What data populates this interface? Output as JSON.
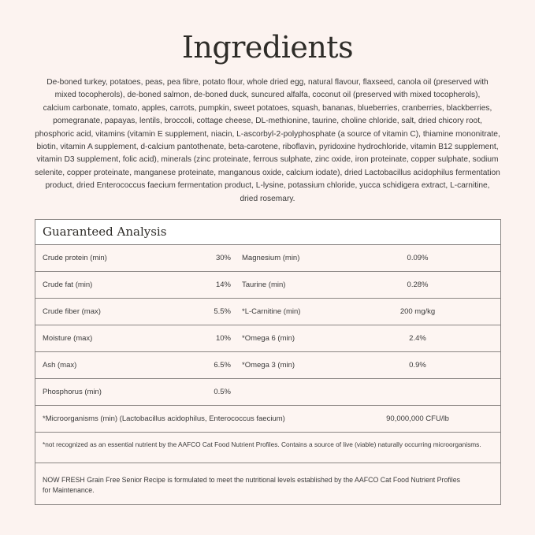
{
  "title": "Ingredients",
  "ingredients_lines": [
    "De-boned turkey, potatoes, peas, pea fibre, potato flour, whole dried egg, natural flavour, flaxseed, canola oil (preserved with",
    "mixed tocopherols), de-boned salmon, de-boned duck, suncured alfalfa, coconut oil (preserved with mixed tocopherols),",
    "calcium carbonate, tomato, apples, carrots, pumpkin, sweet potatoes, squash, bananas, blueberries, cranberries, blackberries,",
    "pomegranate, papayas, lentils, broccoli, cottage cheese, DL-methionine, taurine, choline chloride, salt, dried chicory root,",
    "phosphoric acid, vitamins (vitamin E supplement, niacin, L-ascorbyl-2-polyphosphate (a source of vitamin C), thiamine mononitrate,",
    "biotin, vitamin A supplement, d-calcium pantothenate, beta-carotene, riboflavin, pyridoxine hydrochloride, vitamin B12 supplement,",
    "vitamin D3 supplement, folic acid), minerals (zinc proteinate, ferrous sulphate, zinc oxide, iron proteinate, copper sulphate, sodium",
    "selenite, copper proteinate, manganese proteinate, manganous oxide, calcium iodate), dried Lactobacillus acidophilus fermentation",
    "product, dried Enterococcus faecium fermentation product, L-lysine, potassium chloride, yucca schidigera extract, L-carnitine,",
    "dried rosemary."
  ],
  "analysis": {
    "title": "Guaranteed Analysis",
    "rows": [
      {
        "l1": "Crude protein (min)",
        "v1": "30%",
        "l2": "Magnesium (min)",
        "v2": "0.09%"
      },
      {
        "l1": "Crude fat (min)",
        "v1": "14%",
        "l2": "Taurine (min)",
        "v2": "0.28%"
      },
      {
        "l1": "Crude fiber (max)",
        "v1": "5.5%",
        "l2": "*L-Carnitine (min)",
        "v2": "200 mg/kg"
      },
      {
        "l1": "Moisture (max)",
        "v1": "10%",
        "l2": "*Omega 6 (min)",
        "v2": "2.4%"
      },
      {
        "l1": "Ash (max)",
        "v1": "6.5%",
        "l2": "*Omega 3 (min)",
        "v2": "0.9%"
      },
      {
        "l1": "Phosphorus (min)",
        "v1": "0.5%",
        "l2": "",
        "v2": ""
      }
    ],
    "micro": {
      "label": "*Microorganisms (min) (Lactobacillus acidophilus, Enterococcus faecium)",
      "value": "90,000,000 CFU/lb"
    },
    "footnote": "*not recognized as an essential nutrient by the AAFCO Cat Food Nutrient Profiles. Contains a source of live (viable) naturally occurring microorganisms.",
    "statement": "NOW FRESH Grain Free Senior Recipe is formulated to meet the nutritional levels established by the AAFCO Cat Food Nutrient Profiles for Maintenance."
  }
}
